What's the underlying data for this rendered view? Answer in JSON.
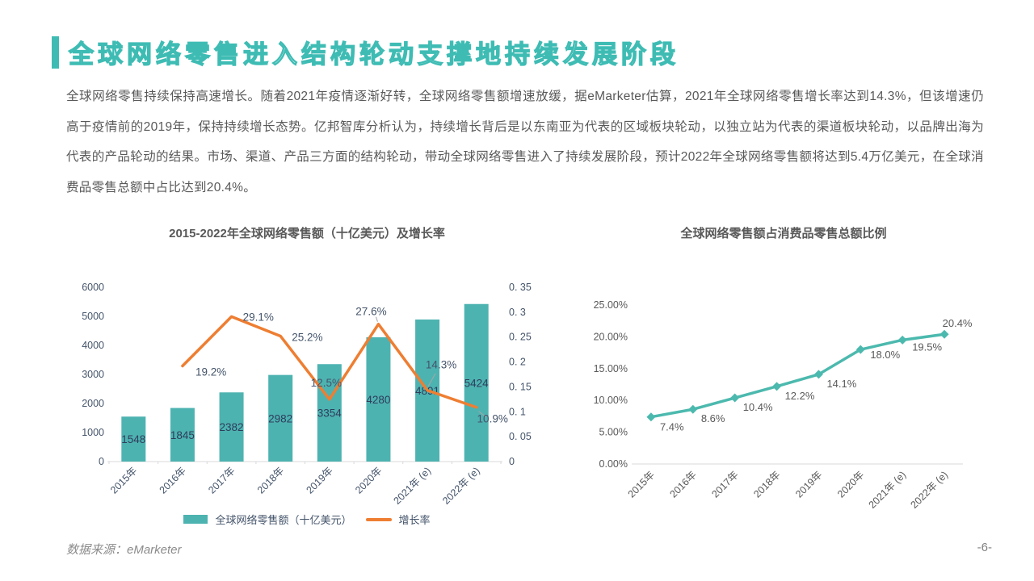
{
  "page": {
    "title": "全球网络零售进入结构轮动支撑地持续发展阶段",
    "body": "全球网络零售持续保持高速增长。随着2021年疫情逐渐好转，全球网络零售额增速放缓，据eMarketer估算，2021年全球网络零售增长率达到14.3%，但该增速仍高于疫情前的2019年，保持持续增长态势。亿邦智库分析认为，持续增长背后是以东南亚为代表的区域板块轮动，以独立站为代表的渠道板块轮动，以品牌出海为代表的产品轮动的结果。市场、渠道、产品三方面的结构轮动，带动全球网络零售进入了持续发展阶段，预计2022年全球网络零售额将达到5.4万亿美元，在全球消费品零售总额中占比达到20.4%。",
    "source": "数据来源：eMarketer",
    "page_number": "-6-"
  },
  "colors": {
    "accent_teal": "#3ebcb4",
    "bar_teal": "#4db3b1",
    "line_orange": "#ee7e32",
    "line_teal": "#4cb9ae",
    "navy_label": "#44546a",
    "gray_label": "#595959",
    "axis_gray": "#d9d9d9",
    "leader_gray": "#a6a6a6"
  },
  "chart_data": [
    {
      "type": "bar",
      "title": "2015-2022年全球网络零售额（十亿美元）及增长率",
      "categories": [
        "2015年",
        "2016年",
        "2017年",
        "2018年",
        "2019年",
        "2020年",
        "2021年 (e)",
        "2022年 (e)"
      ],
      "series": [
        {
          "name": "全球网络零售额（十亿美元）",
          "type": "bar",
          "axis": "left",
          "values": [
            1548,
            1845,
            2382,
            2982,
            3354,
            4280,
            4891,
            5424
          ],
          "labels": [
            "1548",
            "1845",
            "2382",
            "2982",
            "3354",
            "4280",
            "4891",
            "5424"
          ],
          "color": "#4db3b1"
        },
        {
          "name": "增长率",
          "type": "line",
          "axis": "right",
          "values": [
            null,
            0.192,
            0.291,
            0.252,
            0.125,
            0.276,
            0.143,
            0.109
          ],
          "labels": [
            null,
            "19.2%",
            "29.1%",
            "25.2%",
            "12.5%",
            "27.6%",
            "14.3%",
            "10.9%"
          ],
          "color": "#ee7e32"
        }
      ],
      "left_axis": {
        "min": 0,
        "max": 6000,
        "ticks": [
          "0",
          "1000",
          "2000",
          "3000",
          "4000",
          "5000",
          "6000"
        ]
      },
      "right_axis": {
        "min": 0,
        "max": 0.35,
        "ticks": [
          "0",
          "0. 05",
          "0. 1",
          "0. 15",
          "0. 2",
          "0. 25",
          "0. 3",
          "0. 35"
        ]
      },
      "grid": false,
      "legend_position": "bottom"
    },
    {
      "type": "line",
      "title": "全球网络零售额占消费品零售总额比例",
      "categories": [
        "2015年",
        "2016年",
        "2017年",
        "2018年",
        "2019年",
        "2020年",
        "2021年 (e)",
        "2022年 (e)"
      ],
      "values": [
        0.074,
        0.086,
        0.104,
        0.122,
        0.141,
        0.18,
        0.195,
        0.204
      ],
      "labels": [
        "7.4%",
        "8.6%",
        "10.4%",
        "12.2%",
        "14.1%",
        "18.0%",
        "19.5%",
        "20.4%"
      ],
      "ylabel_ticks": [
        "0.00%",
        "5.00%",
        "10.00%",
        "15.00%",
        "20.00%",
        "25.00%"
      ],
      "ylim": [
        0,
        0.25
      ],
      "grid": false,
      "marker": "diamond",
      "color": "#4cb9ae"
    }
  ]
}
